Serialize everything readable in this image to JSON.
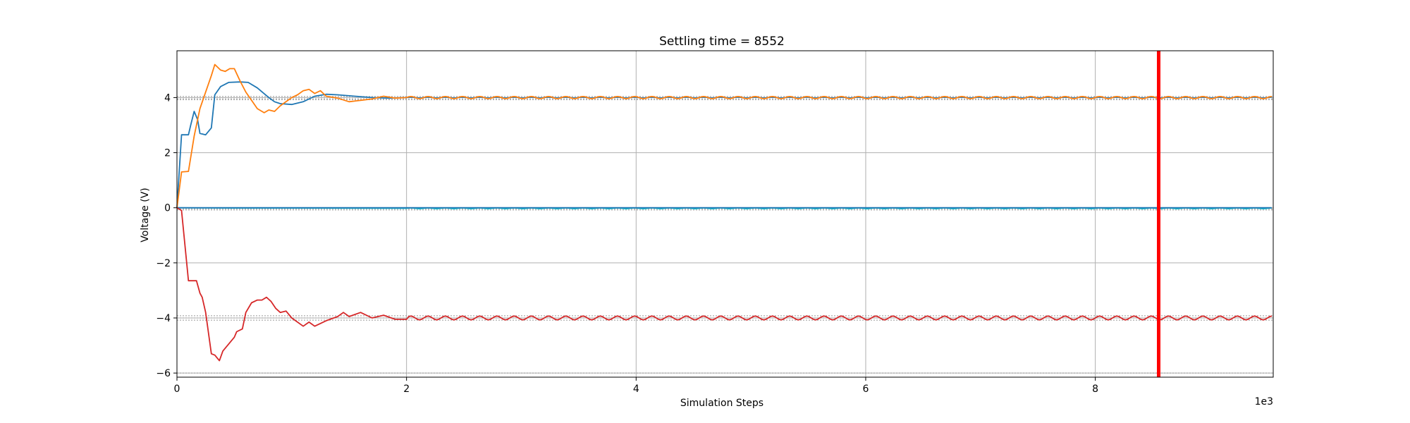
{
  "chart_data": {
    "type": "line",
    "title": "Settling time = 8552",
    "xlabel": "Simulation Steps",
    "ylabel": "Voltage (V)",
    "x_offset_label": "1e3",
    "xlim": [
      0,
      9.55
    ],
    "ylim": [
      -6.15,
      5.7
    ],
    "xticks": [
      0,
      2,
      4,
      6,
      8
    ],
    "yticks": [
      -6,
      -4,
      -2,
      0,
      2,
      4
    ],
    "grid": true,
    "settling_marker": {
      "x": 8.552,
      "color": "#ff0000"
    },
    "reference_lines": [
      {
        "y": 4.04,
        "color": "#999999",
        "style": "dotted"
      },
      {
        "y": 3.96,
        "color": "#999999",
        "style": "dotted"
      },
      {
        "y": 3.92,
        "color": "#999999",
        "style": "dotted"
      },
      {
        "y": -0.04,
        "color": "#999999",
        "style": "dotted"
      },
      {
        "y": -0.08,
        "color": "#999999",
        "style": "dotted"
      },
      {
        "y": -3.92,
        "color": "#999999",
        "style": "dotted"
      },
      {
        "y": -4.0,
        "color": "#999999",
        "style": "dotted"
      },
      {
        "y": -4.08,
        "color": "#999999",
        "style": "dotted"
      },
      {
        "y": -6.0,
        "color": "#999999",
        "style": "dotted"
      }
    ],
    "series": [
      {
        "color": "#1f77b4",
        "transient": [
          [
            0,
            0
          ],
          [
            0.04,
            2.65
          ],
          [
            0.1,
            2.65
          ],
          [
            0.12,
            3.0
          ],
          [
            0.15,
            3.5
          ],
          [
            0.18,
            3.2
          ],
          [
            0.2,
            2.7
          ],
          [
            0.25,
            2.65
          ],
          [
            0.3,
            2.9
          ],
          [
            0.33,
            4.1
          ],
          [
            0.38,
            4.4
          ],
          [
            0.45,
            4.55
          ],
          [
            0.55,
            4.57
          ],
          [
            0.62,
            4.55
          ],
          [
            0.7,
            4.35
          ],
          [
            0.8,
            4.0
          ],
          [
            0.85,
            3.85
          ],
          [
            0.9,
            3.78
          ],
          [
            1.0,
            3.75
          ],
          [
            1.1,
            3.85
          ],
          [
            1.2,
            4.05
          ],
          [
            1.3,
            4.12
          ],
          [
            1.4,
            4.1
          ],
          [
            1.55,
            4.05
          ],
          [
            1.7,
            4.0
          ],
          [
            1.85,
            3.98
          ],
          [
            2.0,
            4.0
          ]
        ],
        "steady": 4.0,
        "ripple": 0.015,
        "period": 0.15
      },
      {
        "color": "#ff7f0e",
        "transient": [
          [
            0,
            0
          ],
          [
            0.04,
            1.3
          ],
          [
            0.1,
            1.32
          ],
          [
            0.15,
            2.6
          ],
          [
            0.2,
            3.6
          ],
          [
            0.25,
            4.2
          ],
          [
            0.3,
            4.8
          ],
          [
            0.33,
            5.2
          ],
          [
            0.38,
            5.0
          ],
          [
            0.42,
            4.95
          ],
          [
            0.46,
            5.05
          ],
          [
            0.5,
            5.05
          ],
          [
            0.55,
            4.6
          ],
          [
            0.6,
            4.2
          ],
          [
            0.65,
            3.9
          ],
          [
            0.7,
            3.6
          ],
          [
            0.76,
            3.45
          ],
          [
            0.8,
            3.55
          ],
          [
            0.85,
            3.5
          ],
          [
            0.9,
            3.7
          ],
          [
            1.0,
            4.0
          ],
          [
            1.05,
            4.1
          ],
          [
            1.1,
            4.25
          ],
          [
            1.15,
            4.3
          ],
          [
            1.2,
            4.15
          ],
          [
            1.25,
            4.25
          ],
          [
            1.3,
            4.05
          ],
          [
            1.4,
            3.98
          ],
          [
            1.5,
            3.85
          ],
          [
            1.6,
            3.9
          ],
          [
            1.7,
            3.95
          ],
          [
            1.8,
            4.05
          ],
          [
            1.9,
            3.98
          ],
          [
            2.0,
            4.0
          ]
        ],
        "steady": 4.0,
        "ripple": 0.04,
        "period": 0.15
      },
      {
        "color": "#17becf",
        "transient": [
          [
            0,
            0
          ],
          [
            0.5,
            -0.01
          ],
          [
            1.0,
            -0.01
          ],
          [
            2.0,
            -0.02
          ]
        ],
        "steady": -0.02,
        "ripple": 0.015,
        "period": 0.15
      },
      {
        "color": "#1f77b4",
        "transient": [
          [
            0,
            0
          ],
          [
            2.0,
            0
          ]
        ],
        "steady": 0.0,
        "ripple": 0.0,
        "period": 0.15
      },
      {
        "color": "#d62728",
        "transient": [
          [
            0,
            0
          ],
          [
            0.04,
            -0.1
          ],
          [
            0.1,
            -2.65
          ],
          [
            0.17,
            -2.65
          ],
          [
            0.2,
            -3.1
          ],
          [
            0.22,
            -3.25
          ],
          [
            0.25,
            -3.8
          ],
          [
            0.3,
            -5.3
          ],
          [
            0.33,
            -5.35
          ],
          [
            0.37,
            -5.55
          ],
          [
            0.4,
            -5.2
          ],
          [
            0.45,
            -4.95
          ],
          [
            0.5,
            -4.7
          ],
          [
            0.52,
            -4.5
          ],
          [
            0.57,
            -4.4
          ],
          [
            0.6,
            -3.8
          ],
          [
            0.65,
            -3.45
          ],
          [
            0.7,
            -3.35
          ],
          [
            0.74,
            -3.35
          ],
          [
            0.78,
            -3.25
          ],
          [
            0.82,
            -3.4
          ],
          [
            0.86,
            -3.65
          ],
          [
            0.9,
            -3.8
          ],
          [
            0.95,
            -3.75
          ],
          [
            1.0,
            -4.0
          ],
          [
            1.1,
            -4.3
          ],
          [
            1.15,
            -4.15
          ],
          [
            1.2,
            -4.3
          ],
          [
            1.3,
            -4.1
          ],
          [
            1.4,
            -3.95
          ],
          [
            1.45,
            -3.8
          ],
          [
            1.5,
            -3.95
          ],
          [
            1.6,
            -3.8
          ],
          [
            1.7,
            -4.0
          ],
          [
            1.8,
            -3.9
          ],
          [
            1.9,
            -4.05
          ],
          [
            2.0,
            -4.05
          ]
        ],
        "steady": -4.0,
        "ripple": 0.07,
        "period": 0.15
      }
    ]
  }
}
